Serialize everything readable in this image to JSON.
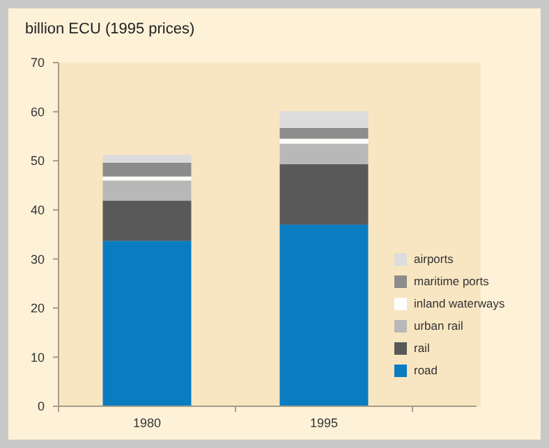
{
  "chart_data": {
    "type": "bar",
    "stacked": true,
    "ylabel": "billion ECU (1995 prices)",
    "categories": [
      "1980",
      "1995"
    ],
    "series": [
      {
        "name": "road",
        "color": "#0a7cc2",
        "values": [
          33.7,
          37.0
        ]
      },
      {
        "name": "rail",
        "color": "#595959",
        "values": [
          8.2,
          12.3
        ]
      },
      {
        "name": "urban rail",
        "color": "#b8b8b8",
        "values": [
          4.1,
          4.2
        ]
      },
      {
        "name": "inland waterways",
        "color": "#ffffff",
        "values": [
          0.8,
          1.0
        ]
      },
      {
        "name": "maritime ports",
        "color": "#8c8c8c",
        "values": [
          2.8,
          2.2
        ]
      },
      {
        "name": "airports",
        "color": "#dcdcdc",
        "values": [
          1.6,
          3.4
        ]
      }
    ],
    "ylim": [
      0,
      70
    ],
    "yticks": [
      0,
      10,
      20,
      30,
      40,
      50,
      60,
      70
    ],
    "grid": false,
    "legend": "right"
  }
}
